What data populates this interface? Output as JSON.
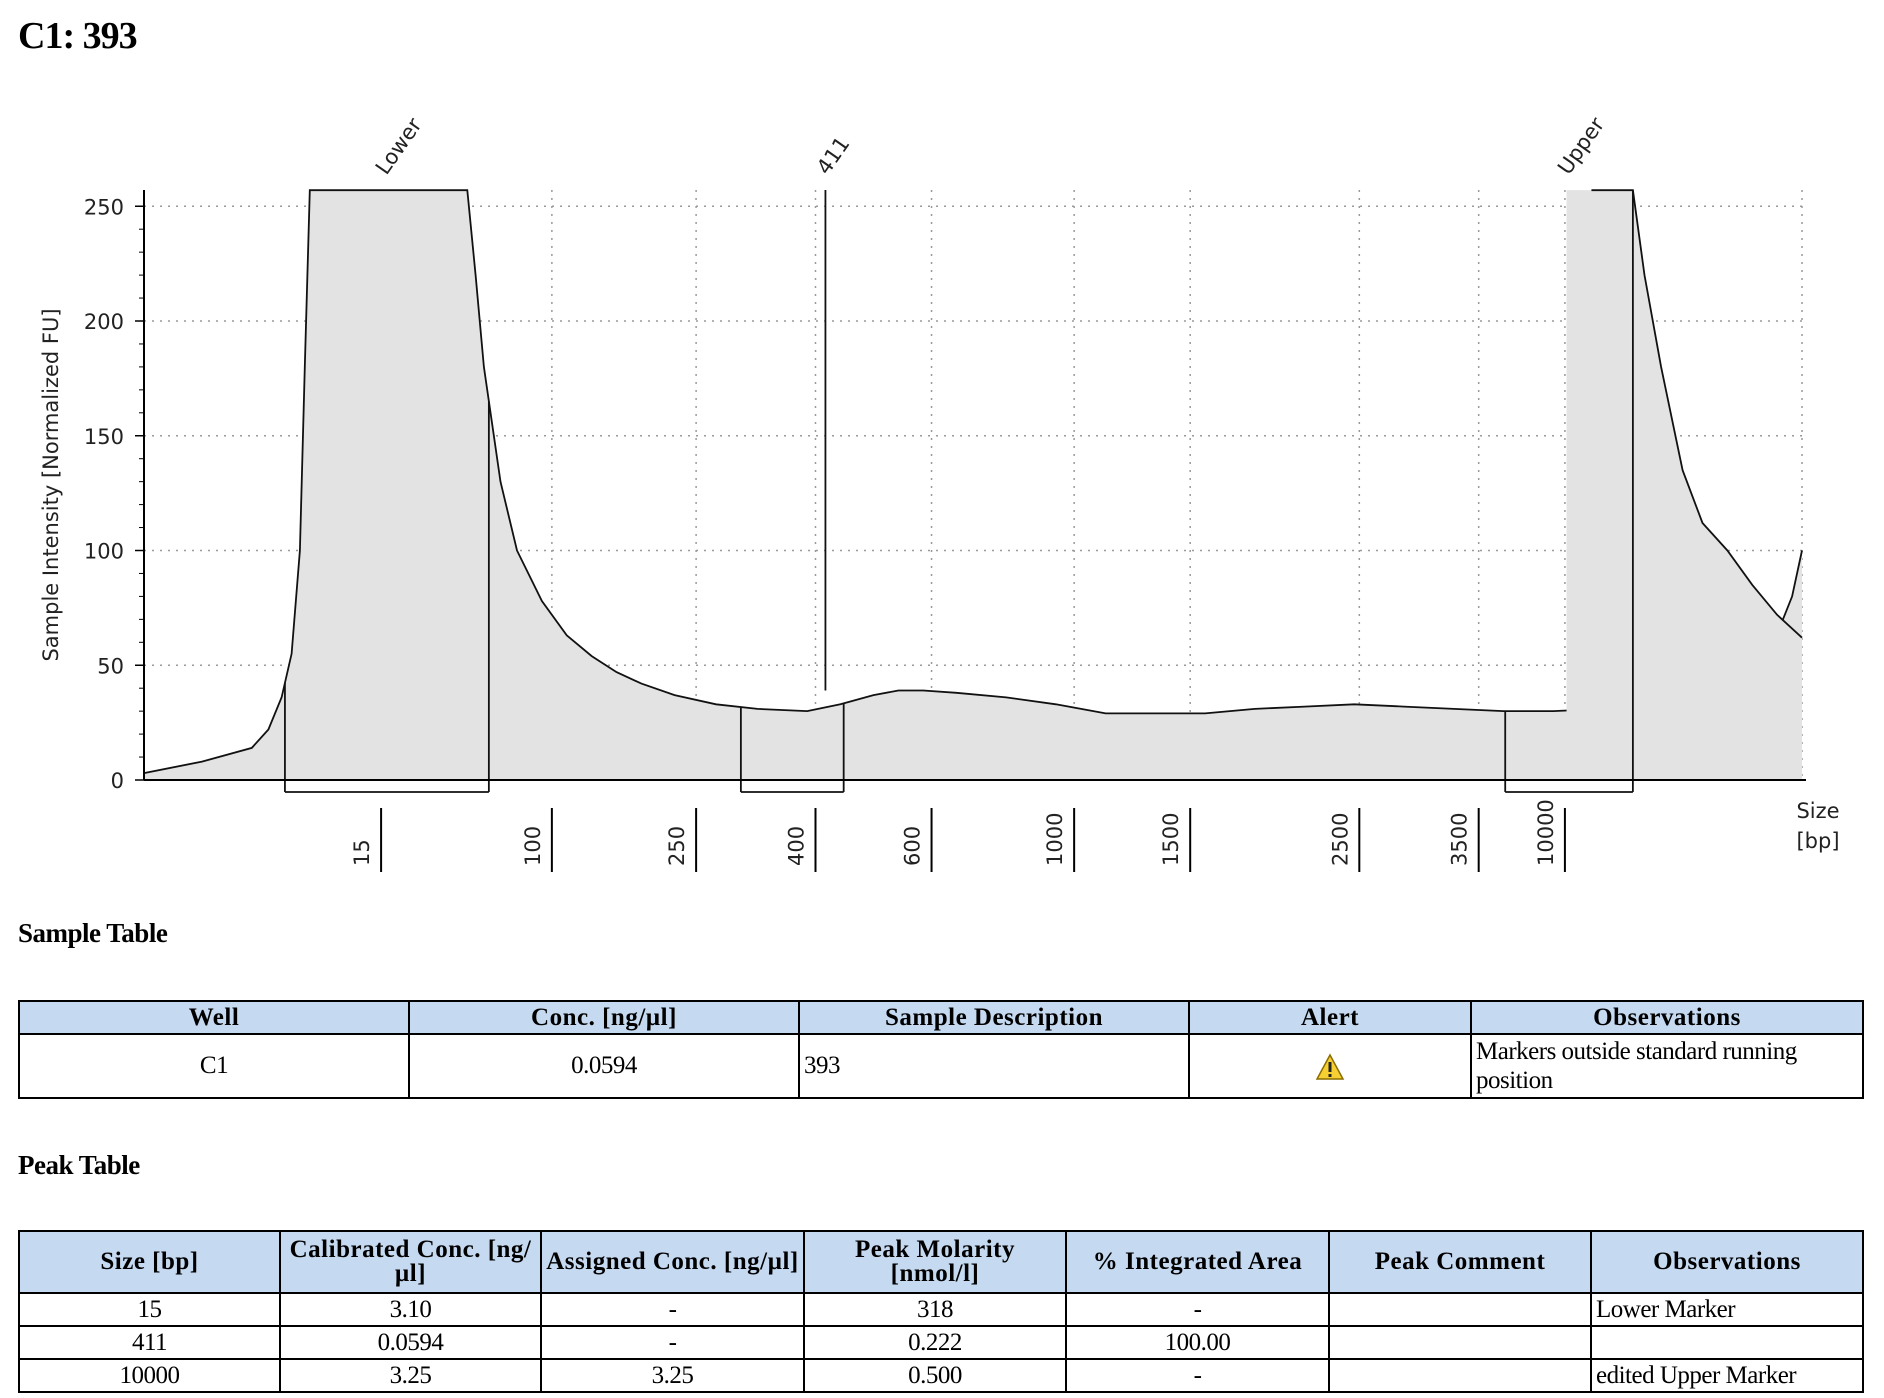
{
  "title": "C1: 393",
  "chart_data": {
    "type": "area",
    "ylabel": "Sample Intensity [Normalized FU]",
    "xlabel": "Size\n[bp]",
    "ylim": [
      0,
      257
    ],
    "yticks": [
      0,
      50,
      100,
      150,
      200,
      250
    ],
    "grid": true,
    "size_ticks": [
      {
        "label": "15",
        "pos": 0.143
      },
      {
        "label": "100",
        "pos": 0.246
      },
      {
        "label": "250",
        "pos": 0.333
      },
      {
        "label": "400",
        "pos": 0.405
      },
      {
        "label": "600",
        "pos": 0.475
      },
      {
        "label": "1000",
        "pos": 0.561
      },
      {
        "label": "1500",
        "pos": 0.631
      },
      {
        "label": "2500",
        "pos": 0.733
      },
      {
        "label": "3500",
        "pos": 0.805
      },
      {
        "label": "10000",
        "pos": 0.857
      }
    ],
    "trace": [
      [
        0.0,
        3
      ],
      [
        0.035,
        8
      ],
      [
        0.065,
        14
      ],
      [
        0.075,
        22
      ],
      [
        0.083,
        36
      ],
      [
        0.089,
        55
      ],
      [
        0.094,
        100
      ],
      [
        0.097,
        180
      ],
      [
        0.1,
        257
      ],
      [
        0.195,
        257
      ],
      [
        0.2,
        220
      ],
      [
        0.205,
        180
      ],
      [
        0.215,
        130
      ],
      [
        0.225,
        100
      ],
      [
        0.24,
        78
      ],
      [
        0.255,
        63
      ],
      [
        0.27,
        54
      ],
      [
        0.285,
        47
      ],
      [
        0.3,
        42
      ],
      [
        0.32,
        37
      ],
      [
        0.345,
        33
      ],
      [
        0.37,
        31
      ],
      [
        0.4,
        30
      ],
      [
        0.42,
        33
      ],
      [
        0.44,
        37
      ],
      [
        0.455,
        39
      ],
      [
        0.47,
        39
      ],
      [
        0.49,
        38
      ],
      [
        0.52,
        36
      ],
      [
        0.55,
        33
      ],
      [
        0.58,
        29
      ],
      [
        0.61,
        29
      ],
      [
        0.64,
        29
      ],
      [
        0.67,
        31
      ],
      [
        0.7,
        32
      ],
      [
        0.73,
        33
      ],
      [
        0.76,
        32
      ],
      [
        0.79,
        31
      ],
      [
        0.82,
        30
      ],
      [
        0.85,
        30
      ],
      [
        0.88,
        31
      ],
      [
        0.91,
        32
      ],
      [
        0.93,
        34
      ],
      [
        0.945,
        37
      ],
      [
        0.96,
        43
      ],
      [
        0.97,
        50
      ],
      [
        0.983,
        60
      ],
      [
        0.994,
        80
      ],
      [
        1.0,
        100
      ]
    ],
    "peaks": [
      {
        "label": "Lower",
        "pos": 0.145,
        "y": 257
      },
      {
        "label": "411",
        "pos": 0.411,
        "y": 39
      },
      {
        "label": "Upper",
        "pos": 0.858,
        "y": 257
      }
    ],
    "integration_regions": [
      [
        0.085,
        0.208
      ],
      [
        0.36,
        0.422
      ],
      [
        0.821,
        0.898
      ]
    ]
  },
  "sample_table": {
    "heading": "Sample Table",
    "columns": [
      "Well",
      "Conc. [ng/µl]",
      "Sample Description",
      "Alert",
      "Observations"
    ],
    "rows": [
      {
        "well": "C1",
        "conc": "0.0594",
        "description": "393",
        "alert_icon": "warning-icon",
        "observations": "Markers outside standard running position"
      }
    ]
  },
  "peak_table": {
    "heading": "Peak Table",
    "columns": [
      "Size [bp]",
      "Calibrated Conc. [ng/µl]",
      "Assigned Conc. [ng/µl]",
      "Peak Molarity [nmol/l]",
      "% Integrated Area",
      "Peak Comment",
      "Observations"
    ],
    "rows": [
      [
        "15",
        "3.10",
        "-",
        "318",
        "-",
        "",
        "Lower Marker"
      ],
      [
        "411",
        "0.0594",
        "-",
        "0.222",
        "100.00",
        "",
        ""
      ],
      [
        "10000",
        "3.25",
        "3.25",
        "0.500",
        "-",
        "",
        "edited Upper Marker"
      ]
    ]
  }
}
